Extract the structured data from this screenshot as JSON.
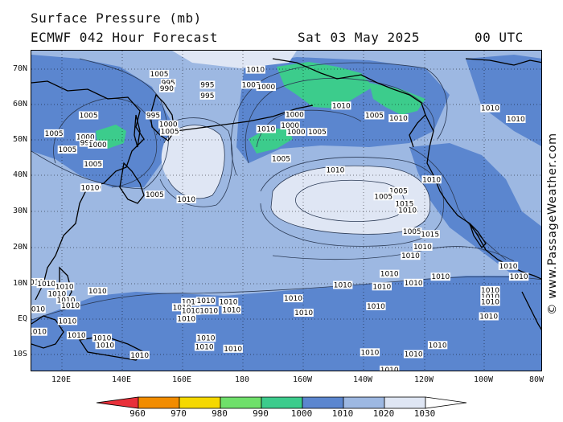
{
  "header": {
    "title_line_1": "Surface Pressure (mb)",
    "title_line_2": "ECMWF 042 Hour Forecast",
    "date": "Sat 03 May 2025",
    "time": "00 UTC"
  },
  "watermark": "© www.PassageWeather.com",
  "axes": {
    "lat_labels": [
      "70N",
      "60N",
      "50N",
      "40N",
      "30N",
      "20N",
      "10N",
      "EQ",
      "10S"
    ],
    "lon_labels": [
      "120E",
      "140E",
      "160E",
      "180",
      "160W",
      "140W",
      "120W",
      "100W",
      "80W"
    ]
  },
  "colorbar": {
    "labels": [
      "960",
      "970",
      "980",
      "990",
      "1000",
      "1010",
      "1020",
      "1030"
    ],
    "colors": [
      "#e8303a",
      "#f28c00",
      "#f5d800",
      "#6fe06a",
      "#3ccc8c",
      "#5b86cf",
      "#9db8e2",
      "#dfe6f4",
      "#ffffff"
    ]
  },
  "map": {
    "fill_colors": {
      "lt_1000": "#3ccc8c",
      "p1000_1010": "#5b86cf",
      "p1010_1020": "#9db8e2",
      "gt_1020": "#dfe6f4",
      "contour": "#2b3a55",
      "coast": "#000000"
    },
    "contour_labels": [
      {
        "text": "1005",
        "lon": 152.5,
        "lat": 68.3
      },
      {
        "text": "995",
        "lon": 155.5,
        "lat": 65.8
      },
      {
        "text": "995",
        "lon": 168.5,
        "lat": 65.3
      },
      {
        "text": "990",
        "lon": 155.0,
        "lat": 64.3
      },
      {
        "text": "995",
        "lon": 168.5,
        "lat": 62.3
      },
      {
        "text": "995",
        "lon": 150.5,
        "lat": 56.8
      },
      {
        "text": "1000",
        "lon": 155.5,
        "lat": 54.3
      },
      {
        "text": "1005",
        "lon": 156.0,
        "lat": 52.3
      },
      {
        "text": "1000",
        "lon": 128.0,
        "lat": 50.8
      },
      {
        "text": "995",
        "lon": 128.5,
        "lat": 49.2
      },
      {
        "text": "1010",
        "lon": 130.0,
        "lat": 36.8
      },
      {
        "text": "1005",
        "lon": 117.5,
        "lat": 51.8
      },
      {
        "text": "1005",
        "lon": 129.0,
        "lat": 56.8
      },
      {
        "text": "1000",
        "lon": 132.0,
        "lat": 48.7
      },
      {
        "text": "1005",
        "lon": 130.5,
        "lat": 43.3
      },
      {
        "text": "1005",
        "lon": 151.0,
        "lat": 34.8
      },
      {
        "text": "1005",
        "lon": 122.0,
        "lat": 47.3
      },
      {
        "text": "1010",
        "lon": 184.5,
        "lat": 69.5
      },
      {
        "text": "1005",
        "lon": 183.0,
        "lat": 65.3
      },
      {
        "text": "1000",
        "lon": 188.0,
        "lat": 64.7
      },
      {
        "text": "1000",
        "lon": 197.5,
        "lat": 57.0
      },
      {
        "text": "1000",
        "lon": 196.0,
        "lat": 54.0
      },
      {
        "text": "1000",
        "lon": 198.0,
        "lat": 52.2
      },
      {
        "text": "1005",
        "lon": 205.0,
        "lat": 52.2
      },
      {
        "text": "1005",
        "lon": 193.0,
        "lat": 44.8
      },
      {
        "text": "1010",
        "lon": 188.0,
        "lat": 53.0
      },
      {
        "text": "1010",
        "lon": 213.0,
        "lat": 59.5
      },
      {
        "text": "1005",
        "lon": 224.0,
        "lat": 56.8
      },
      {
        "text": "1010",
        "lon": 232.0,
        "lat": 56.0
      },
      {
        "text": "1010",
        "lon": 243.0,
        "lat": 39.0
      },
      {
        "text": "1010",
        "lon": 211.0,
        "lat": 41.6
      },
      {
        "text": "1010",
        "lon": 262.5,
        "lat": 58.8
      },
      {
        "text": "1010",
        "lon": 271.0,
        "lat": 55.8
      },
      {
        "text": "1005",
        "lon": 232.0,
        "lat": 35.8
      },
      {
        "text": "1005",
        "lon": 227.0,
        "lat": 34.3
      },
      {
        "text": "1015",
        "lon": 234.0,
        "lat": 32.3
      },
      {
        "text": "1010",
        "lon": 235.0,
        "lat": 30.5
      },
      {
        "text": "1005",
        "lon": 236.5,
        "lat": 24.5
      },
      {
        "text": "1015",
        "lon": 242.5,
        "lat": 23.8
      },
      {
        "text": "1010",
        "lon": 240.0,
        "lat": 20.3
      },
      {
        "text": "1010",
        "lon": 236.0,
        "lat": 17.8
      },
      {
        "text": "1010",
        "lon": 268.5,
        "lat": 15.0
      },
      {
        "text": "1010",
        "lon": 272.0,
        "lat": 12.0
      },
      {
        "text": "1010",
        "lon": 262.5,
        "lat": 8.3
      },
      {
        "text": "1010",
        "lon": 262.5,
        "lat": 6.5
      },
      {
        "text": "1010",
        "lon": 262.5,
        "lat": 5.0
      },
      {
        "text": "1010",
        "lon": 262.0,
        "lat": 1.0
      },
      {
        "text": "1010",
        "lon": 161.5,
        "lat": 33.5
      },
      {
        "text": "1010",
        "lon": 129.5,
        "lat": 36.7
      },
      {
        "text": "1010",
        "lon": 111.0,
        "lat": 10.5
      },
      {
        "text": "1010",
        "lon": 115.0,
        "lat": 10.0
      },
      {
        "text": "1010",
        "lon": 121.0,
        "lat": 9.3
      },
      {
        "text": "1010",
        "lon": 118.5,
        "lat": 7.2
      },
      {
        "text": "1010",
        "lon": 121.5,
        "lat": 5.5
      },
      {
        "text": "1010",
        "lon": 123.0,
        "lat": 4.0
      },
      {
        "text": "1010",
        "lon": 111.5,
        "lat": 3.0
      },
      {
        "text": "1010",
        "lon": 132.0,
        "lat": 8.0
      },
      {
        "text": "1010",
        "lon": 122.0,
        "lat": -0.3
      },
      {
        "text": "1010",
        "lon": 112.0,
        "lat": -3.3
      },
      {
        "text": "1010",
        "lon": 125.0,
        "lat": -4.3
      },
      {
        "text": "1010",
        "lon": 133.5,
        "lat": -5.0
      },
      {
        "text": "1010",
        "lon": 134.5,
        "lat": -7.0
      },
      {
        "text": "1010",
        "lon": 146.0,
        "lat": -9.8
      },
      {
        "text": "1010",
        "lon": 163.0,
        "lat": 5.0
      },
      {
        "text": "1010",
        "lon": 168.0,
        "lat": 5.3
      },
      {
        "text": "1010",
        "lon": 175.5,
        "lat": 5.0
      },
      {
        "text": "1010",
        "lon": 160.0,
        "lat": 3.5
      },
      {
        "text": "1010",
        "lon": 163.0,
        "lat": 2.5
      },
      {
        "text": "1010",
        "lon": 169.0,
        "lat": 2.6
      },
      {
        "text": "1010",
        "lon": 176.5,
        "lat": 2.8
      },
      {
        "text": "1010",
        "lon": 161.5,
        "lat": 0.3
      },
      {
        "text": "1010",
        "lon": 167.5,
        "lat": -7.5
      },
      {
        "text": "1010",
        "lon": 177.0,
        "lat": -8.0
      },
      {
        "text": "1010",
        "lon": 168.0,
        "lat": -5.0
      },
      {
        "text": "1010",
        "lon": 180.0,
        "lat": -14.5
      },
      {
        "text": "1010",
        "lon": 197.0,
        "lat": 6.0
      },
      {
        "text": "1010",
        "lon": 213.5,
        "lat": 9.7
      },
      {
        "text": "1010",
        "lon": 237.0,
        "lat": 10.3
      },
      {
        "text": "1010",
        "lon": 246.0,
        "lat": 12.0
      },
      {
        "text": "1010",
        "lon": 229.0,
        "lat": 12.8
      },
      {
        "text": "1010",
        "lon": 226.5,
        "lat": 9.3
      },
      {
        "text": "1010",
        "lon": 200.5,
        "lat": 2.0
      },
      {
        "text": "1010",
        "lon": 224.5,
        "lat": 3.8
      },
      {
        "text": "1010",
        "lon": 222.5,
        "lat": -9.0
      },
      {
        "text": "1010",
        "lon": 237.0,
        "lat": -9.5
      },
      {
        "text": "1010",
        "lon": 245.0,
        "lat": -7.0
      },
      {
        "text": "1010",
        "lon": 229.0,
        "lat": -13.8
      }
    ]
  }
}
